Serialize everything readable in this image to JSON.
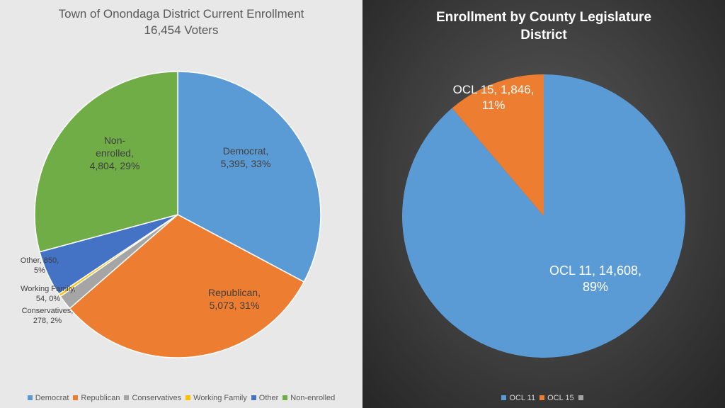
{
  "left_chart": {
    "title_line1": "Town of Onondaga District Current Enrollment",
    "title_line2": "16,454 Voters"
  },
  "right_chart": {
    "title_line1": "Enrollment  by  County  Legislature",
    "title_line2": "District"
  },
  "chart_data": [
    {
      "type": "pie",
      "title": "Town of Onondaga District Current Enrollment 16,454 Voters",
      "slices": [
        {
          "label": "Democrat",
          "value": 5395,
          "percent": "33%",
          "color": "#5b9bd5",
          "data_label": [
            "Democrat,",
            "5,395, 33%"
          ],
          "label_color": "#404040"
        },
        {
          "label": "Republican",
          "value": 5073,
          "percent": "31%",
          "color": "#ed7d31",
          "data_label": [
            "Republican,",
            "5,073, 31%"
          ],
          "label_color": "#404040"
        },
        {
          "label": "Conservatives",
          "value": 278,
          "percent": "2%",
          "color": "#a5a5a5",
          "data_label": [
            "Conservatives,",
            "278, 2%"
          ],
          "label_color": "#404040"
        },
        {
          "label": "Working Family",
          "value": 54,
          "percent": "0%",
          "color": "#ffc000",
          "data_label": [
            "Working Family,",
            "54, 0%"
          ],
          "label_color": "#404040"
        },
        {
          "label": "Other",
          "value": 850,
          "percent": "5%",
          "color": "#4472c4",
          "data_label": [
            "Other, 850,",
            "5%"
          ],
          "label_color": "#404040"
        },
        {
          "label": "Non-enrolled",
          "value": 4804,
          "percent": "29%",
          "color": "#70ad47",
          "data_label": [
            "Non-",
            "enrolled,",
            "4,804, 29%"
          ],
          "label_color": "#404040"
        }
      ],
      "legend": [
        "Democrat",
        "Republican",
        "Conservatives",
        "Working Family",
        "Other",
        "Non-enrolled"
      ],
      "legend_position": "bottom"
    },
    {
      "type": "pie",
      "title": "Enrollment by County Legislature District",
      "slices": [
        {
          "label": "OCL 11",
          "value": 14608,
          "percent": "89%",
          "color": "#5b9bd5",
          "data_label": [
            "OCL 11, 14,608,",
            "89%"
          ],
          "label_color": "#ffffff"
        },
        {
          "label": "OCL 15",
          "value": 1846,
          "percent": "11%",
          "color": "#ed7d31",
          "data_label": [
            "OCL 15, 1,846,",
            "11%"
          ],
          "label_color": "#ffffff"
        }
      ],
      "legend": [
        "OCL 11",
        "OCL 15",
        ""
      ],
      "legend_colors": [
        "#5b9bd5",
        "#ed7d31",
        "#a5a5a5"
      ],
      "legend_position": "bottom"
    }
  ]
}
